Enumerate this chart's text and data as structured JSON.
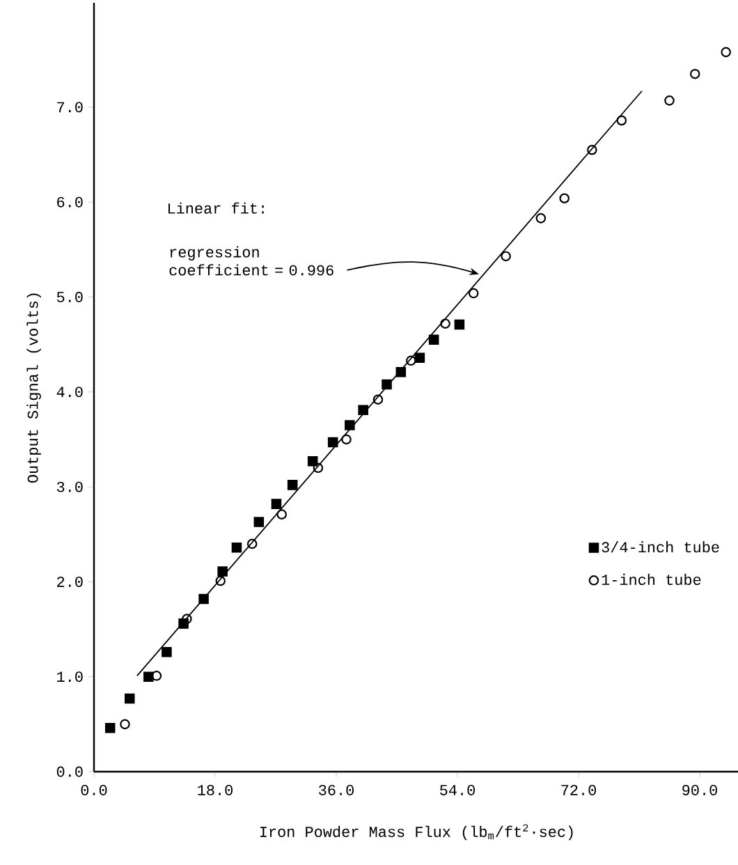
{
  "chart_data": {
    "type": "scatter",
    "xlabel": "Iron Powder Mass Flux (lb$_{m}$/ft$^{2}$·sec)",
    "ylabel": "Output Signal (volts)",
    "xlim": [
      0,
      96
    ],
    "ylim": [
      0,
      8.1
    ],
    "xticks": [
      {
        "value": 0,
        "label": "0.0"
      },
      {
        "value": 18,
        "label": "18.0"
      },
      {
        "value": 36,
        "label": "36.0"
      },
      {
        "value": 54,
        "label": "54.0"
      },
      {
        "value": 72,
        "label": "72.0"
      },
      {
        "value": 90,
        "label": "90.0"
      }
    ],
    "yticks": [
      {
        "value": 0,
        "label": "0.0"
      },
      {
        "value": 1,
        "label": "1.0"
      },
      {
        "value": 2,
        "label": "2.0"
      },
      {
        "value": 3,
        "label": "3.0"
      },
      {
        "value": 4,
        "label": "4.0"
      },
      {
        "value": 5,
        "label": "5.0"
      },
      {
        "value": 6,
        "label": "6.0"
      },
      {
        "value": 7,
        "label": "7.0"
      }
    ],
    "legend": "right",
    "annotations": [
      "Linear fit:",
      "regression coefficient = 0.996"
    ],
    "series": [
      {
        "name": "3/4-inch tube",
        "color": "#000000",
        "marker": "square",
        "x": [
          2.4,
          5.3,
          8.1,
          10.8,
          13.3,
          16.3,
          19.1,
          21.2,
          24.5,
          27.1,
          29.5,
          32.5,
          35.5,
          38.0,
          40.0,
          43.5,
          45.6,
          48.4,
          50.5,
          54.3
        ],
        "values": [
          0.46,
          0.77,
          1.0,
          1.26,
          1.56,
          1.82,
          2.11,
          2.36,
          2.63,
          2.82,
          3.02,
          3.27,
          3.47,
          3.65,
          3.81,
          4.08,
          4.21,
          4.36,
          4.55,
          4.71
        ]
      },
      {
        "name": "1-inch tube",
        "color": "#000000",
        "marker": "circle",
        "x": [
          4.6,
          9.3,
          13.8,
          18.8,
          23.5,
          27.9,
          33.3,
          37.5,
          42.2,
          47.1,
          52.2,
          56.4,
          61.2,
          66.4,
          69.9,
          74.0,
          78.4,
          85.5,
          89.3,
          93.9
        ],
        "values": [
          0.5,
          1.01,
          1.61,
          2.01,
          2.4,
          2.71,
          3.2,
          3.5,
          3.92,
          4.33,
          4.72,
          5.04,
          5.43,
          5.83,
          6.04,
          6.55,
          6.86,
          7.07,
          7.35,
          7.58
        ]
      },
      {
        "type": "line",
        "color": "#000000",
        "marker": "none",
        "x": [
          6.4,
          81.4
        ],
        "values": [
          1.01,
          7.17
        ]
      }
    ]
  }
}
